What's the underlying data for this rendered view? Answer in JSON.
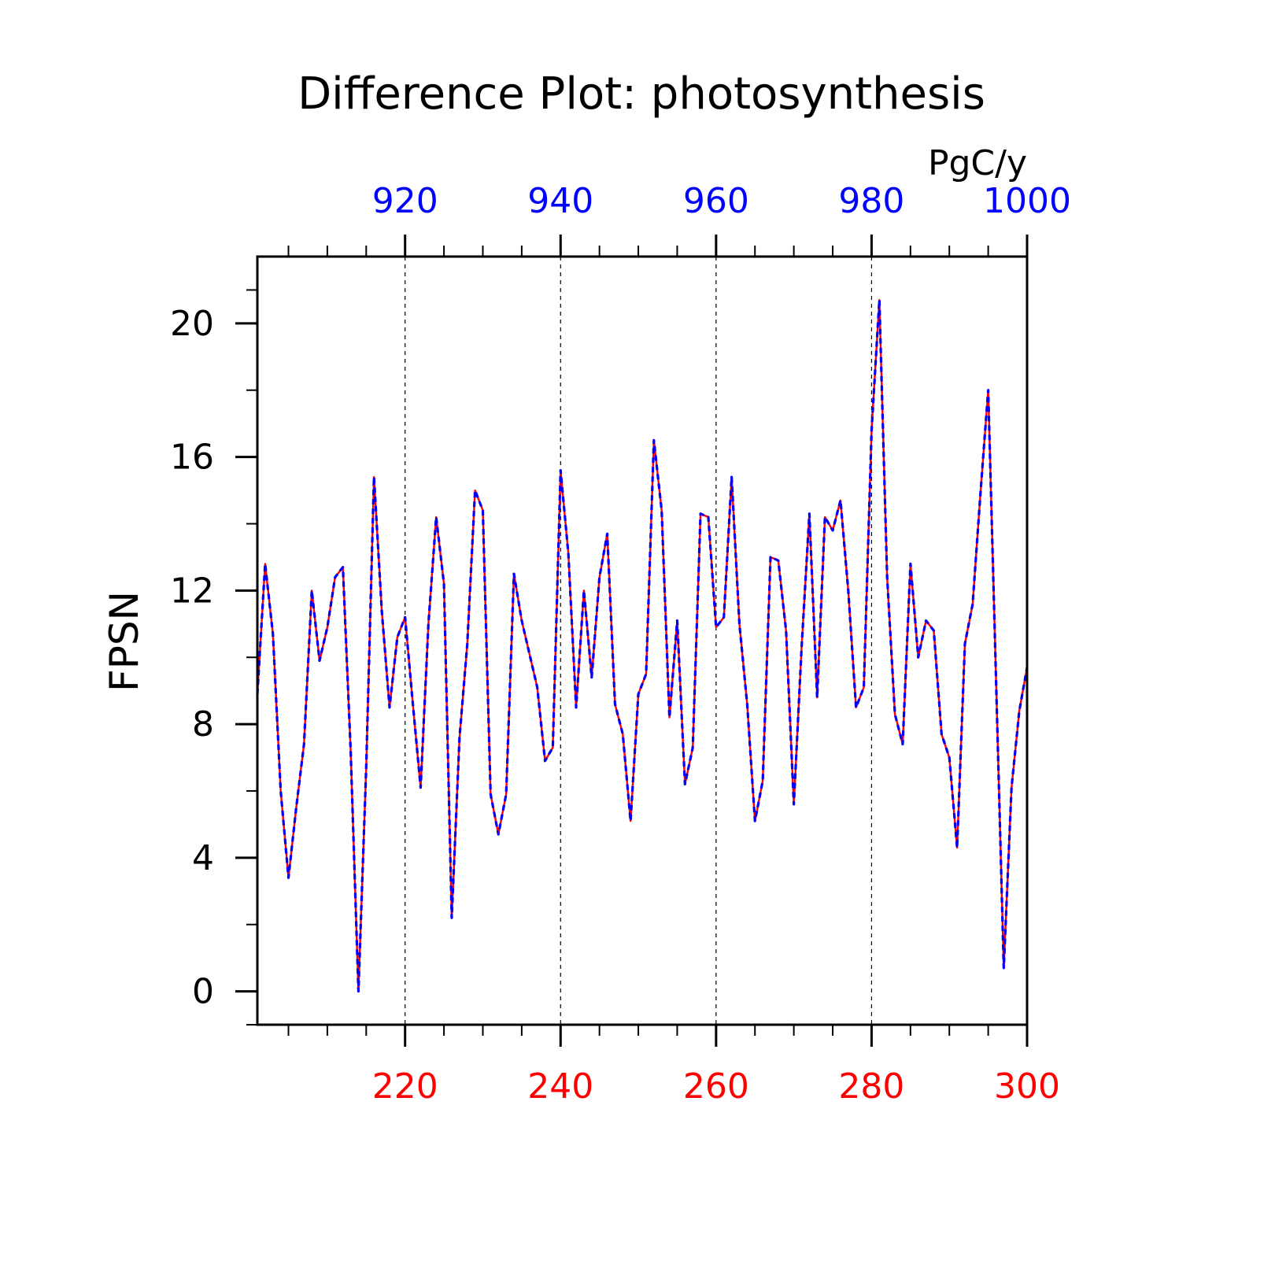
{
  "chart_data": {
    "type": "line",
    "title": "Difference Plot: photosynthesis",
    "units_label": "PgC/y",
    "ylabel": "FPSN",
    "xlabel": "",
    "bottom_axis": {
      "range": [
        201,
        300
      ],
      "tick_labels": [
        "220",
        "240",
        "260",
        "280",
        "300"
      ],
      "color": "#ff0000"
    },
    "top_axis": {
      "range": [
        901,
        1000
      ],
      "tick_labels": [
        "920",
        "940",
        "960",
        "980",
        "1000"
      ],
      "color": "#0000ff"
    },
    "ylim": [
      -1,
      22
    ],
    "ytick_labels": [
      "0",
      "4",
      "8",
      "12",
      "16",
      "20"
    ],
    "grid": "vertical dashed at major x ticks",
    "legend": "none",
    "series": [
      {
        "color": "#ff0000",
        "style": "solid",
        "x_start": 201,
        "values": [
          8.9,
          12.8,
          10.7,
          6.0,
          3.4,
          5.5,
          7.4,
          12.0,
          9.9,
          10.9,
          12.4,
          12.7,
          7.2,
          0.0,
          6.7,
          15.4,
          11.4,
          8.5,
          10.6,
          11.2,
          8.6,
          6.1,
          11.0,
          14.2,
          12.2,
          2.2,
          7.6,
          10.4,
          15.0,
          14.4,
          5.9,
          4.7,
          5.9,
          12.5,
          11.1,
          10.1,
          9.1,
          6.9,
          7.3,
          15.6,
          13.1,
          8.5,
          12.0,
          9.4,
          12.4,
          13.7,
          8.6,
          7.7,
          5.1,
          8.9,
          9.5,
          16.5,
          14.4,
          8.2,
          11.1,
          6.2,
          7.3,
          14.3,
          14.2,
          10.9,
          11.2,
          15.4,
          11.0,
          8.6,
          5.1,
          6.3,
          13.0,
          12.9,
          10.8,
          5.6,
          10.3,
          14.3,
          8.8,
          14.2,
          13.8,
          14.7,
          12.0,
          8.5,
          9.1,
          16.8,
          20.7,
          12.4,
          8.3,
          7.4,
          12.8,
          10.0,
          11.1,
          10.8,
          7.7,
          7.0,
          4.3,
          10.4,
          11.6,
          14.9,
          18.0,
          9.4,
          0.7,
          6.1,
          8.4,
          9.7
        ],
        "name": ""
      },
      {
        "color": "#0000ff",
        "style": "dashed",
        "x_start": 901,
        "values": [
          8.9,
          12.8,
          10.7,
          6.0,
          3.4,
          5.5,
          7.4,
          12.0,
          9.9,
          10.9,
          12.4,
          12.7,
          7.2,
          0.0,
          6.7,
          15.4,
          11.4,
          8.5,
          10.6,
          11.2,
          8.6,
          6.1,
          11.0,
          14.2,
          12.2,
          2.2,
          7.6,
          10.4,
          15.0,
          14.4,
          5.9,
          4.7,
          5.9,
          12.5,
          11.1,
          10.1,
          9.1,
          6.9,
          7.3,
          15.6,
          13.1,
          8.5,
          12.0,
          9.4,
          12.4,
          13.7,
          8.6,
          7.7,
          5.1,
          8.9,
          9.5,
          16.5,
          14.4,
          8.2,
          11.1,
          6.2,
          7.3,
          14.3,
          14.2,
          10.9,
          11.2,
          15.4,
          11.0,
          8.6,
          5.1,
          6.3,
          13.0,
          12.9,
          10.8,
          5.6,
          10.3,
          14.3,
          8.8,
          14.2,
          13.8,
          14.7,
          12.0,
          8.5,
          9.1,
          16.8,
          20.7,
          12.4,
          8.3,
          7.4,
          12.8,
          10.0,
          11.1,
          10.8,
          7.7,
          7.0,
          4.3,
          10.4,
          11.6,
          14.9,
          18.0,
          9.4,
          0.7,
          6.1,
          8.4,
          9.7
        ],
        "name": ""
      }
    ]
  }
}
